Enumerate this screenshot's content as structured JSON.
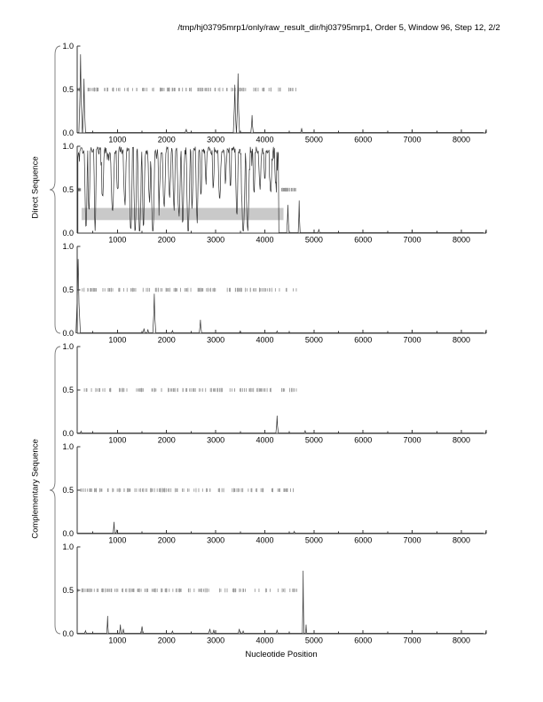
{
  "chart_data": {
    "type": "line",
    "title": "/tmp/hj03795mrp1/only/raw_result_dir/hj03795mrp1, Order 5, Window 96, Step 12, 2/2",
    "xlabel": "Nucleotide Position",
    "ylabel_groups": [
      {
        "label": "Direct Sequence",
        "panels": [
          0,
          1,
          2
        ]
      },
      {
        "label": "Complementary Sequence",
        "panels": [
          3,
          4,
          5
        ]
      }
    ],
    "xlim": [
      0,
      8500
    ],
    "ylim": [
      0.0,
      1.0
    ],
    "xticks": [
      1000,
      2000,
      3000,
      4000,
      5000,
      6000,
      7000,
      8000
    ],
    "yticks": [
      0.0,
      0.5,
      1.0
    ],
    "grid": false,
    "legend": null,
    "colors": {
      "line": "#333333",
      "marks": "#9a9a9a",
      "highlight": "#c9c9c9",
      "axis": "#333333",
      "text": "#000000"
    },
    "panels": [
      {
        "name": "direct-frame-1",
        "seed": 11,
        "marks": [
          {
            "range": [
              185,
              4640
            ],
            "n": 120
          }
        ],
        "spikes": [
          [
            250,
            0.9,
            70
          ],
          [
            320,
            0.62,
            60
          ],
          [
            2400,
            0.04,
            50
          ],
          [
            3390,
            0.55,
            60
          ],
          [
            3455,
            0.68,
            60
          ],
          [
            3740,
            0.2,
            50
          ],
          [
            4750,
            0.05,
            40
          ]
        ],
        "noise": null,
        "highlight": null
      },
      {
        "name": "direct-frame-2",
        "seed": 22,
        "marks": [
          {
            "range": [
              185,
              270
            ],
            "n": 7
          },
          {
            "range": [
              4340,
              4660
            ],
            "n": 26
          }
        ],
        "spikes": [
          [
            4470,
            0.32,
            50
          ],
          [
            4700,
            0.37,
            40
          ],
          [
            5100,
            0.04,
            40
          ]
        ],
        "noise": {
          "start": 195,
          "end": 4280,
          "base": 0.99,
          "dips": [
            [
              360,
              60,
              0.03
            ],
            [
              420,
              50,
              0.25
            ],
            [
              545,
              50,
              0.03
            ],
            [
              700,
              60,
              0.45
            ],
            [
              900,
              80,
              0.3
            ],
            [
              1000,
              50,
              0.5
            ],
            [
              1150,
              60,
              0.35
            ],
            [
              1270,
              70,
              0.03
            ],
            [
              1360,
              70,
              0.05
            ],
            [
              1450,
              80,
              0.03
            ],
            [
              1530,
              60,
              0.1
            ],
            [
              1650,
              60,
              0.4
            ],
            [
              1720,
              80,
              0.02
            ],
            [
              1850,
              60,
              0.45
            ],
            [
              1950,
              70,
              0.35
            ],
            [
              2060,
              60,
              0.45
            ],
            [
              2150,
              60,
              0.3
            ],
            [
              2250,
              80,
              0.25
            ],
            [
              2330,
              60,
              0.15
            ],
            [
              2440,
              80,
              0.03
            ],
            [
              2520,
              50,
              0.3
            ],
            [
              2620,
              60,
              0.2
            ],
            [
              2700,
              50,
              0.45
            ],
            [
              2800,
              40,
              0.6
            ],
            [
              2950,
              50,
              0.55
            ],
            [
              3080,
              70,
              0.45
            ],
            [
              3200,
              40,
              0.6
            ],
            [
              3300,
              50,
              0.55
            ],
            [
              3430,
              60,
              0.2
            ],
            [
              3560,
              90,
              0.03
            ],
            [
              3650,
              80,
              0.05
            ],
            [
              3780,
              50,
              0.5
            ],
            [
              3900,
              60,
              0.55
            ],
            [
              4000,
              50,
              0.6
            ],
            [
              4120,
              60,
              0.5
            ],
            [
              4220,
              50,
              0.55
            ]
          ]
        },
        "highlight": {
          "x": [
            270,
            4380
          ],
          "y": [
            0.15,
            0.29
          ]
        }
      },
      {
        "name": "direct-frame-3",
        "seed": 33,
        "marks": [
          {
            "range": [
              185,
              4640
            ],
            "n": 115
          }
        ],
        "spikes": [
          [
            200,
            0.85,
            90
          ],
          [
            1540,
            0.05,
            50
          ],
          [
            1620,
            0.04,
            40
          ],
          [
            1750,
            0.45,
            60
          ],
          [
            2120,
            0.03,
            40
          ],
          [
            2690,
            0.15,
            50
          ],
          [
            3500,
            0.02,
            40
          ],
          [
            4250,
            0.02,
            40
          ]
        ],
        "noise": null,
        "highlight": null
      },
      {
        "name": "complementary-frame-1",
        "seed": 44,
        "marks": [
          {
            "range": [
              185,
              4660
            ],
            "n": 110
          }
        ],
        "spikes": [
          [
            260,
            0.02,
            40
          ],
          [
            4250,
            0.2,
            50
          ],
          [
            4820,
            0.03,
            40
          ]
        ],
        "noise": null,
        "highlight": null
      },
      {
        "name": "complementary-frame-2",
        "seed": 55,
        "marks": [
          {
            "range": [
              185,
              4640
            ],
            "n": 112
          }
        ],
        "spikes": [
          [
            930,
            0.13,
            40
          ],
          [
            990,
            0.04,
            40
          ],
          [
            4600,
            0.02,
            40
          ]
        ],
        "noise": null,
        "highlight": null
      },
      {
        "name": "complementary-frame-3",
        "seed": 66,
        "marks": [
          {
            "range": [
              185,
              4660
            ],
            "n": 118
          }
        ],
        "spikes": [
          [
            350,
            0.03,
            50
          ],
          [
            800,
            0.2,
            35
          ],
          [
            1060,
            0.1,
            40
          ],
          [
            1120,
            0.05,
            40
          ],
          [
            1500,
            0.08,
            60
          ],
          [
            2120,
            0.03,
            40
          ],
          [
            2880,
            0.05,
            60
          ],
          [
            2960,
            0.04,
            40
          ],
          [
            3480,
            0.05,
            50
          ],
          [
            3560,
            0.03,
            40
          ],
          [
            4250,
            0.04,
            40
          ],
          [
            4780,
            0.72,
            30
          ],
          [
            4840,
            0.1,
            30
          ]
        ],
        "noise": null,
        "highlight": null
      }
    ]
  }
}
